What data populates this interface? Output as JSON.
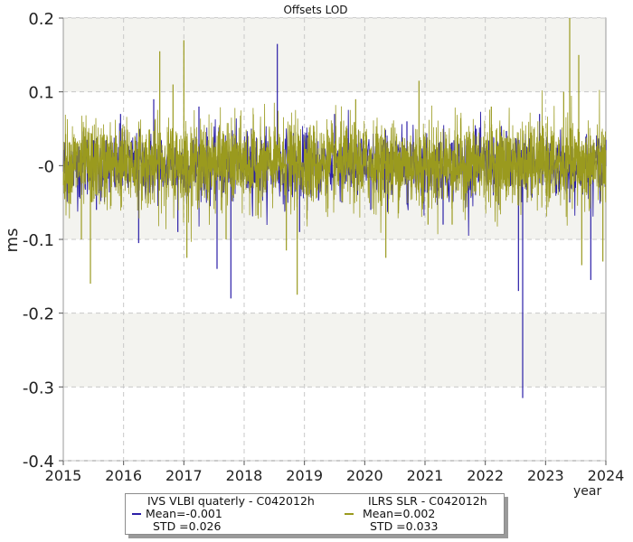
{
  "chart_data": {
    "type": "line",
    "title": "Offsets LOD",
    "xlabel": "year",
    "ylabel": "ms",
    "xlim": [
      2015,
      2024
    ],
    "ylim": [
      -0.4,
      0.2
    ],
    "x_ticks": [
      "2015",
      "2016",
      "2017",
      "2018",
      "2019",
      "2020",
      "2021",
      "2022",
      "2023",
      "2024"
    ],
    "y_ticks": [
      "0.2",
      "0.1",
      "-0",
      "-0.1",
      "-0.2",
      "-0.3",
      "-0.4"
    ],
    "grid": true,
    "legend_position": "bottom",
    "series": [
      {
        "name": "IVS VLBI quaterly - C042012h",
        "color": "#2b1fa8",
        "mean_label": "Mean=-0.001",
        "std_label": "STD =0.026",
        "mean": -0.001,
        "std": 0.026,
        "spikes": [
          [
            2015.55,
            -0.06
          ],
          [
            2015.95,
            0.07
          ],
          [
            2016.25,
            -0.105
          ],
          [
            2016.5,
            0.09
          ],
          [
            2016.9,
            -0.09
          ],
          [
            2017.25,
            0.08
          ],
          [
            2017.55,
            -0.14
          ],
          [
            2017.78,
            -0.18
          ],
          [
            2018.12,
            0.05
          ],
          [
            2018.55,
            0.165
          ],
          [
            2018.92,
            -0.09
          ],
          [
            2019.5,
            0.07
          ],
          [
            2020.1,
            -0.06
          ],
          [
            2020.7,
            0.06
          ],
          [
            2021.3,
            -0.08
          ],
          [
            2021.85,
            0.05
          ],
          [
            2022.55,
            -0.17
          ],
          [
            2022.62,
            -0.315
          ],
          [
            2022.9,
            0.07
          ],
          [
            2023.4,
            -0.05
          ],
          [
            2023.75,
            -0.155
          ],
          [
            2024.0,
            0.035
          ]
        ]
      },
      {
        "name": "ILRS SLR - C042012h",
        "color": "#9a9a1e",
        "mean_label": "Mean=0.002",
        "std_label": "STD =0.033",
        "mean": 0.002,
        "std": 0.033,
        "spikes": [
          [
            2015.45,
            -0.16
          ],
          [
            2015.3,
            -0.1
          ],
          [
            2016.6,
            0.155
          ],
          [
            2016.82,
            0.11
          ],
          [
            2017.0,
            0.17
          ],
          [
            2017.05,
            -0.125
          ],
          [
            2017.7,
            -0.1
          ],
          [
            2018.7,
            -0.115
          ],
          [
            2018.88,
            -0.175
          ],
          [
            2019.85,
            0.09
          ],
          [
            2020.35,
            -0.125
          ],
          [
            2020.9,
            0.115
          ],
          [
            2021.05,
            -0.08
          ],
          [
            2021.45,
            -0.08
          ],
          [
            2022.1,
            0.08
          ],
          [
            2023.3,
            0.1
          ],
          [
            2023.4,
            0.2
          ],
          [
            2023.55,
            0.15
          ],
          [
            2023.6,
            -0.135
          ],
          [
            2023.95,
            -0.13
          ]
        ]
      }
    ]
  }
}
